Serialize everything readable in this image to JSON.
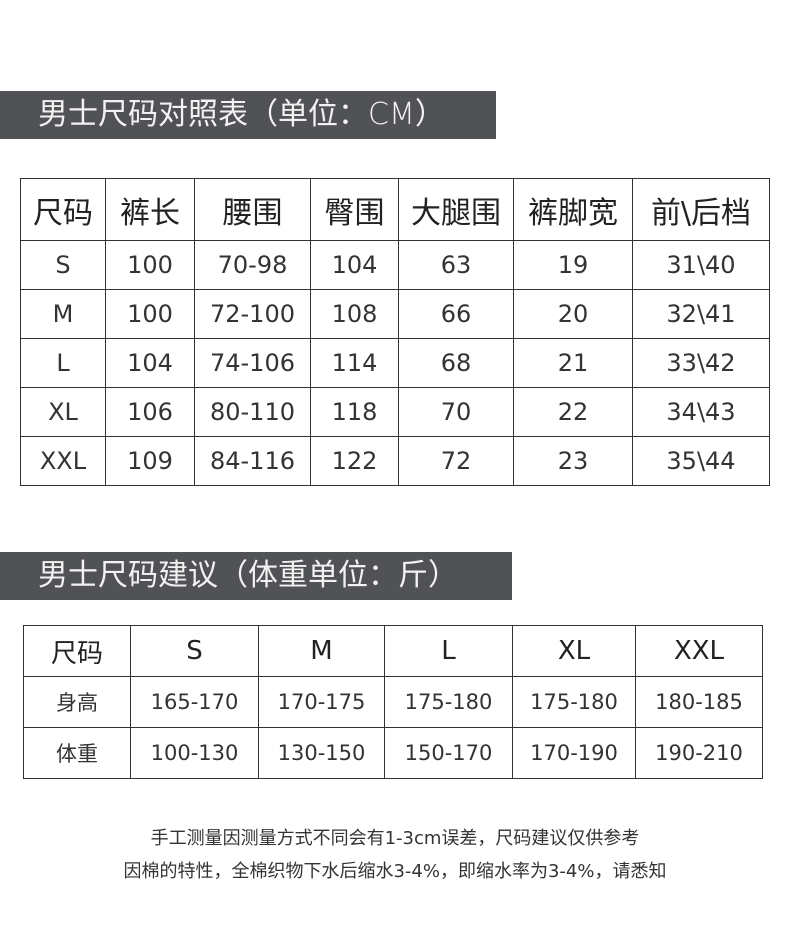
{
  "size_chart": {
    "title": "男士尺码对照表（单位：CM）",
    "headers": [
      "尺码",
      "裤长",
      "腰围",
      "臀围",
      "大腿围",
      "裤脚宽",
      "前\\后档"
    ],
    "rows": [
      [
        "S",
        "100",
        "70-98",
        "104",
        "63",
        "19",
        "31\\40"
      ],
      [
        "M",
        "100",
        "72-100",
        "108",
        "66",
        "20",
        "32\\41"
      ],
      [
        "L",
        "104",
        "74-106",
        "114",
        "68",
        "21",
        "33\\42"
      ],
      [
        "XL",
        "106",
        "80-110",
        "118",
        "70",
        "22",
        "34\\43"
      ],
      [
        "XXL",
        "109",
        "84-116",
        "122",
        "72",
        "23",
        "35\\44"
      ]
    ]
  },
  "size_advice": {
    "title": "男士尺码建议（体重单位：斤）",
    "headers": [
      "尺码",
      "S",
      "M",
      "L",
      "XL",
      "XXL"
    ],
    "rows": [
      [
        "身高",
        "165-170",
        "170-175",
        "175-180",
        "175-180",
        "180-185"
      ],
      [
        "体重",
        "100-130",
        "130-150",
        "150-170",
        "170-190",
        "190-210"
      ]
    ]
  },
  "notes": [
    "手工测量因测量方式不同会有1-3cm误差，尺码建议仅供参考",
    "因棉的特性，全棉织物下水后缩水3-4%，即缩水率为3-4%，请悉知"
  ],
  "colors": {
    "banner_bg": "#505256",
    "banner_text": "#f2f2f2",
    "border": "#333333"
  }
}
